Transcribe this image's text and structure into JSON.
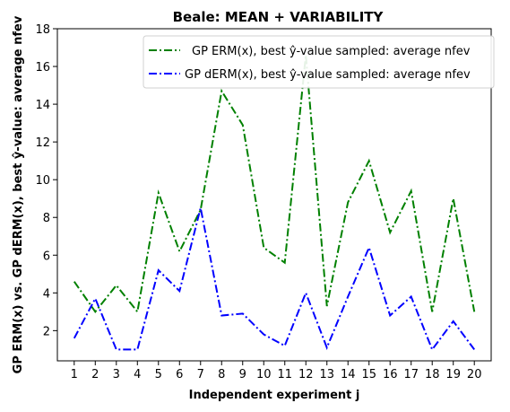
{
  "chart_data": {
    "type": "line",
    "title": "Beale: MEAN + VARIABILITY",
    "xlabel": "Independent experiment j",
    "ylabel": "GP ERM(x) vs. GP dERM(x), best ŷ-value: average nfev",
    "x": [
      1,
      2,
      3,
      4,
      5,
      6,
      7,
      8,
      9,
      10,
      11,
      12,
      13,
      14,
      15,
      16,
      17,
      18,
      19,
      20
    ],
    "xlim": [
      0.2,
      20.8
    ],
    "ylim": [
      0.4,
      18
    ],
    "yticks": [
      2,
      4,
      6,
      8,
      10,
      12,
      14,
      16,
      18
    ],
    "legend_position": "upper right",
    "grid": false,
    "series": [
      {
        "name": "GP ERM(x), best ŷ-value sampled: average nfev",
        "color": "#008000",
        "values": [
          4.6,
          3.0,
          4.4,
          3.0,
          9.3,
          6.2,
          8.4,
          14.7,
          12.9,
          6.4,
          5.6,
          16.6,
          3.3,
          8.8,
          11.0,
          7.2,
          9.4,
          3.0,
          9.0,
          3.0
        ]
      },
      {
        "name": "GP dERM(x), best ŷ-value sampled: average nfev",
        "color": "#0000ff",
        "values": [
          1.6,
          3.7,
          1.0,
          1.0,
          5.2,
          4.1,
          8.5,
          2.8,
          2.9,
          1.8,
          1.2,
          4.0,
          1.1,
          3.8,
          6.4,
          2.8,
          3.8,
          1.0,
          2.5,
          1.0
        ]
      }
    ]
  }
}
